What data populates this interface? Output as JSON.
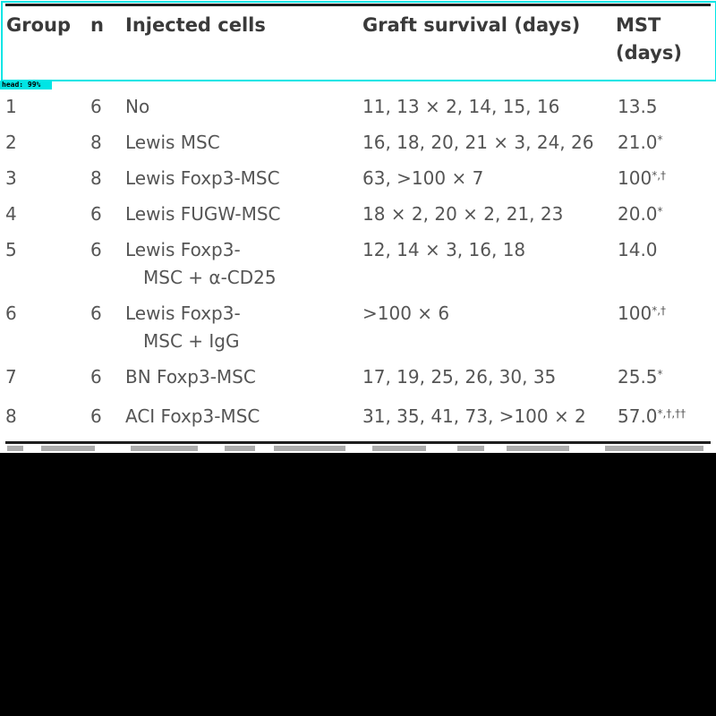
{
  "overlay": {
    "label": "head: 99%",
    "color": "#00e5e5"
  },
  "header": {
    "group": "Group",
    "n": "n",
    "cells": "Injected cells",
    "survival": "Graft survival (days)",
    "mst_line1": "MST",
    "mst_line2": "(days)"
  },
  "rows": [
    {
      "group": "1",
      "n": "6",
      "cells": [
        "No"
      ],
      "survival": "11, 13 × 2, 14, 15, 16",
      "mst": "13.5",
      "mst_sup": ""
    },
    {
      "group": "2",
      "n": "8",
      "cells": [
        "Lewis MSC"
      ],
      "survival": "16, 18, 20, 21 × 3, 24, 26",
      "mst": "21.0",
      "mst_sup": "*"
    },
    {
      "group": "3",
      "n": "8",
      "cells": [
        "Lewis Foxp3-MSC"
      ],
      "survival": "63, >100 × 7",
      "mst": "100",
      "mst_sup": "*,†"
    },
    {
      "group": "4",
      "n": "6",
      "cells": [
        "Lewis FUGW-MSC"
      ],
      "survival": "18 × 2, 20 × 2, 21, 23",
      "mst": "20.0",
      "mst_sup": "*"
    },
    {
      "group": "5",
      "n": "6",
      "cells": [
        "Lewis Foxp3-",
        "MSC + α-CD25"
      ],
      "survival": "12, 14 × 3, 16, 18",
      "mst": "14.0",
      "mst_sup": ""
    },
    {
      "group": "6",
      "n": "6",
      "cells": [
        "Lewis Foxp3-",
        "MSC + IgG"
      ],
      "survival": ">100 × 6",
      "mst": "100",
      "mst_sup": "*,†"
    },
    {
      "group": "7",
      "n": "6",
      "cells": [
        "BN Foxp3-MSC"
      ],
      "survival": "17, 19, 25, 26, 30, 35",
      "mst": "25.5",
      "mst_sup": "*"
    },
    {
      "group": "8",
      "n": "6",
      "cells": [
        "ACI Foxp3-MSC"
      ],
      "survival": "31, 35, 41, 73, >100 × 2",
      "mst": "57.0",
      "mst_sup": "*,†,††"
    }
  ]
}
